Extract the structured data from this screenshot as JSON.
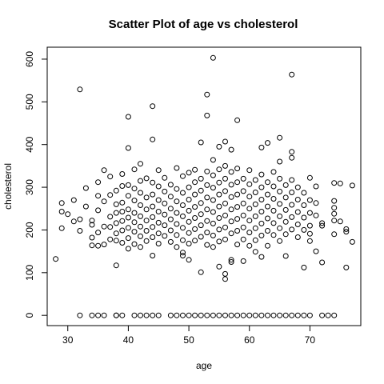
{
  "chart_data": {
    "type": "scatter",
    "title": "Scatter Plot of age vs cholesterol",
    "xlabel": "age",
    "ylabel": "cholesterol",
    "xlim": [
      26.6,
      78.4
    ],
    "ylim": [
      -24,
      628
    ],
    "x_ticks": [
      30,
      40,
      50,
      60,
      70
    ],
    "y_ticks": [
      0,
      100,
      200,
      300,
      400,
      500,
      600
    ],
    "x_tick_labels": [
      "30",
      "40",
      "50",
      "60",
      "70"
    ],
    "y_tick_labels": [
      "0",
      "100",
      "200",
      "300",
      "400",
      "500",
      "600"
    ],
    "point_color": "#000000",
    "points": [
      [
        28,
        132
      ],
      [
        29,
        243
      ],
      [
        29,
        204
      ],
      [
        29,
        263
      ],
      [
        30,
        237
      ],
      [
        31,
        270
      ],
      [
        31,
        220
      ],
      [
        32,
        529
      ],
      [
        32,
        198
      ],
      [
        32,
        225
      ],
      [
        33,
        255
      ],
      [
        33,
        298
      ],
      [
        34,
        182
      ],
      [
        34,
        164
      ],
      [
        34,
        212
      ],
      [
        34,
        222
      ],
      [
        35,
        280
      ],
      [
        35,
        246
      ],
      [
        35,
        194
      ],
      [
        35,
        163
      ],
      [
        35,
        312
      ],
      [
        36,
        340
      ],
      [
        36,
        267
      ],
      [
        36,
        208
      ],
      [
        36,
        166
      ],
      [
        37,
        325
      ],
      [
        37,
        282
      ],
      [
        37,
        231
      ],
      [
        37,
        207
      ],
      [
        37,
        178
      ],
      [
        38,
        292
      ],
      [
        38,
        260
      ],
      [
        38,
        240
      ],
      [
        38,
        216
      ],
      [
        38,
        192
      ],
      [
        38,
        175
      ],
      [
        38,
        117
      ],
      [
        39,
        331
      ],
      [
        39,
        303
      ],
      [
        39,
        264
      ],
      [
        39,
        243
      ],
      [
        39,
        221
      ],
      [
        39,
        199
      ],
      [
        39,
        170
      ],
      [
        40,
        465
      ],
      [
        40,
        392
      ],
      [
        40,
        305
      ],
      [
        40,
        280
      ],
      [
        40,
        248
      ],
      [
        40,
        229
      ],
      [
        40,
        205
      ],
      [
        40,
        181
      ],
      [
        40,
        156
      ],
      [
        41,
        342
      ],
      [
        41,
        297
      ],
      [
        41,
        269
      ],
      [
        41,
        240
      ],
      [
        41,
        218
      ],
      [
        41,
        196
      ],
      [
        41,
        167
      ],
      [
        42,
        355
      ],
      [
        42,
        315
      ],
      [
        42,
        287
      ],
      [
        42,
        258
      ],
      [
        42,
        232
      ],
      [
        42,
        208
      ],
      [
        42,
        185
      ],
      [
        42,
        160
      ],
      [
        43,
        321
      ],
      [
        43,
        276
      ],
      [
        43,
        248
      ],
      [
        43,
        222
      ],
      [
        43,
        198
      ],
      [
        43,
        174
      ],
      [
        44,
        490
      ],
      [
        44,
        412
      ],
      [
        44,
        311
      ],
      [
        44,
        283
      ],
      [
        44,
        255
      ],
      [
        44,
        230
      ],
      [
        44,
        207
      ],
      [
        44,
        183
      ],
      [
        44,
        140
      ],
      [
        45,
        340
      ],
      [
        45,
        302
      ],
      [
        45,
        270
      ],
      [
        45,
        243
      ],
      [
        45,
        217
      ],
      [
        45,
        192
      ],
      [
        45,
        168
      ],
      [
        46,
        322
      ],
      [
        46,
        290
      ],
      [
        46,
        262
      ],
      [
        46,
        236
      ],
      [
        46,
        211
      ],
      [
        46,
        186
      ],
      [
        47,
        306
      ],
      [
        47,
        278
      ],
      [
        47,
        250
      ],
      [
        47,
        225
      ],
      [
        47,
        199
      ],
      [
        47,
        172
      ],
      [
        48,
        345
      ],
      [
        48,
        296
      ],
      [
        48,
        267
      ],
      [
        48,
        240
      ],
      [
        48,
        214
      ],
      [
        48,
        188
      ],
      [
        48,
        160
      ],
      [
        49,
        326
      ],
      [
        49,
        287
      ],
      [
        49,
        258
      ],
      [
        49,
        232
      ],
      [
        49,
        205
      ],
      [
        49,
        176
      ],
      [
        49,
        147
      ],
      [
        49,
        140
      ],
      [
        50,
        334
      ],
      [
        50,
        300
      ],
      [
        50,
        271
      ],
      [
        50,
        245
      ],
      [
        50,
        219
      ],
      [
        50,
        193
      ],
      [
        50,
        168
      ],
      [
        50,
        130
      ],
      [
        51,
        341
      ],
      [
        51,
        312
      ],
      [
        51,
        283
      ],
      [
        51,
        254
      ],
      [
        51,
        228
      ],
      [
        51,
        202
      ],
      [
        51,
        175
      ],
      [
        52,
        405
      ],
      [
        52,
        320
      ],
      [
        52,
        292
      ],
      [
        52,
        263
      ],
      [
        52,
        237
      ],
      [
        52,
        211
      ],
      [
        52,
        184
      ],
      [
        52,
        101
      ],
      [
        53,
        517
      ],
      [
        53,
        468
      ],
      [
        53,
        337
      ],
      [
        53,
        305
      ],
      [
        53,
        276
      ],
      [
        53,
        248
      ],
      [
        53,
        221
      ],
      [
        53,
        194
      ],
      [
        53,
        165
      ],
      [
        54,
        603
      ],
      [
        54,
        364
      ],
      [
        54,
        328
      ],
      [
        54,
        299
      ],
      [
        54,
        270
      ],
      [
        54,
        242
      ],
      [
        54,
        215
      ],
      [
        54,
        187
      ],
      [
        54,
        160
      ],
      [
        55,
        395
      ],
      [
        55,
        342
      ],
      [
        55,
        311
      ],
      [
        55,
        283
      ],
      [
        55,
        255
      ],
      [
        55,
        228
      ],
      [
        55,
        201
      ],
      [
        55,
        173
      ],
      [
        55,
        114
      ],
      [
        56,
        407
      ],
      [
        56,
        350
      ],
      [
        56,
        320
      ],
      [
        56,
        291
      ],
      [
        56,
        262
      ],
      [
        56,
        234
      ],
      [
        56,
        206
      ],
      [
        56,
        178
      ],
      [
        56,
        97
      ],
      [
        56,
        85
      ],
      [
        57,
        388
      ],
      [
        57,
        336
      ],
      [
        57,
        306
      ],
      [
        57,
        277
      ],
      [
        57,
        248
      ],
      [
        57,
        220
      ],
      [
        57,
        192
      ],
      [
        57,
        130
      ],
      [
        57,
        125
      ],
      [
        58,
        457
      ],
      [
        58,
        344
      ],
      [
        58,
        312
      ],
      [
        58,
        283
      ],
      [
        58,
        254
      ],
      [
        58,
        226
      ],
      [
        58,
        198
      ],
      [
        58,
        166
      ],
      [
        59,
        320
      ],
      [
        59,
        291
      ],
      [
        59,
        262
      ],
      [
        59,
        234
      ],
      [
        59,
        206
      ],
      [
        59,
        178
      ],
      [
        59,
        127
      ],
      [
        60,
        340
      ],
      [
        60,
        307
      ],
      [
        60,
        278
      ],
      [
        60,
        250
      ],
      [
        60,
        222
      ],
      [
        60,
        194
      ],
      [
        60,
        163
      ],
      [
        61,
        317
      ],
      [
        61,
        288
      ],
      [
        61,
        260
      ],
      [
        61,
        232
      ],
      [
        61,
        204
      ],
      [
        61,
        176
      ],
      [
        61,
        149
      ],
      [
        62,
        393
      ],
      [
        62,
        330
      ],
      [
        62,
        300
      ],
      [
        62,
        271
      ],
      [
        62,
        243
      ],
      [
        62,
        215
      ],
      [
        62,
        187
      ],
      [
        62,
        137
      ],
      [
        63,
        404
      ],
      [
        63,
        312
      ],
      [
        63,
        283
      ],
      [
        63,
        255
      ],
      [
        63,
        227
      ],
      [
        63,
        198
      ],
      [
        63,
        163
      ],
      [
        64,
        336
      ],
      [
        64,
        302
      ],
      [
        64,
        273
      ],
      [
        64,
        245
      ],
      [
        64,
        216
      ],
      [
        64,
        188
      ],
      [
        65,
        416
      ],
      [
        65,
        360
      ],
      [
        65,
        320
      ],
      [
        65,
        290
      ],
      [
        65,
        261
      ],
      [
        65,
        232
      ],
      [
        65,
        204
      ],
      [
        65,
        174
      ],
      [
        66,
        305
      ],
      [
        66,
        276
      ],
      [
        66,
        247
      ],
      [
        66,
        219
      ],
      [
        66,
        190
      ],
      [
        66,
        139
      ],
      [
        67,
        564
      ],
      [
        67,
        383
      ],
      [
        67,
        369
      ],
      [
        67,
        317
      ],
      [
        67,
        288
      ],
      [
        67,
        259
      ],
      [
        67,
        230
      ],
      [
        67,
        201
      ],
      [
        68,
        300
      ],
      [
        68,
        271
      ],
      [
        68,
        242
      ],
      [
        68,
        213
      ],
      [
        68,
        183
      ],
      [
        69,
        287
      ],
      [
        69,
        258
      ],
      [
        69,
        229
      ],
      [
        69,
        200
      ],
      [
        69,
        112
      ],
      [
        70,
        322
      ],
      [
        70,
        270
      ],
      [
        70,
        240
      ],
      [
        70,
        210
      ],
      [
        70,
        191
      ],
      [
        70,
        174
      ],
      [
        71,
        302
      ],
      [
        71,
        263
      ],
      [
        71,
        234
      ],
      [
        71,
        150
      ],
      [
        72,
        210
      ],
      [
        72,
        216
      ],
      [
        72,
        124
      ],
      [
        74,
        310
      ],
      [
        74,
        268
      ],
      [
        74,
        252
      ],
      [
        74,
        238
      ],
      [
        74,
        222
      ],
      [
        74,
        190
      ],
      [
        75,
        309
      ],
      [
        75,
        220
      ],
      [
        76,
        112
      ],
      [
        76,
        196
      ],
      [
        76,
        202
      ],
      [
        77,
        304
      ],
      [
        77,
        172
      ],
      [
        32,
        0
      ],
      [
        34,
        0
      ],
      [
        35,
        0
      ],
      [
        36,
        0
      ],
      [
        38,
        0
      ],
      [
        38,
        0
      ],
      [
        39,
        0
      ],
      [
        41,
        0
      ],
      [
        42,
        0
      ],
      [
        43,
        0
      ],
      [
        44,
        0
      ],
      [
        45,
        0
      ],
      [
        47,
        0
      ],
      [
        48,
        0
      ],
      [
        49,
        0
      ],
      [
        50,
        0
      ],
      [
        51,
        0
      ],
      [
        52,
        0
      ],
      [
        53,
        0
      ],
      [
        54,
        0
      ],
      [
        55,
        0
      ],
      [
        56,
        0
      ],
      [
        57,
        0
      ],
      [
        58,
        0
      ],
      [
        59,
        0
      ],
      [
        60,
        0
      ],
      [
        61,
        0
      ],
      [
        62,
        0
      ],
      [
        63,
        0
      ],
      [
        64,
        0
      ],
      [
        65,
        0
      ],
      [
        66,
        0
      ],
      [
        67,
        0
      ],
      [
        68,
        0
      ],
      [
        69,
        0
      ],
      [
        70,
        0
      ],
      [
        72,
        0
      ],
      [
        73,
        0
      ],
      [
        74,
        0
      ]
    ]
  }
}
